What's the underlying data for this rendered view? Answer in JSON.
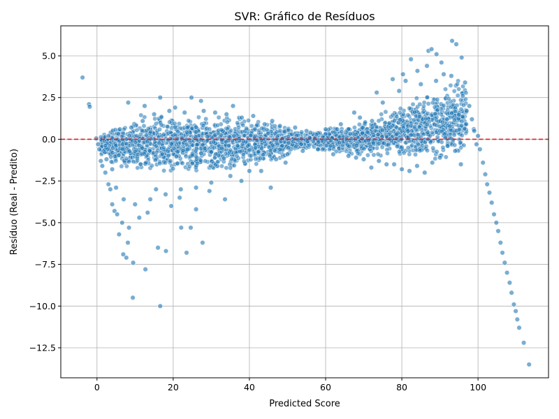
{
  "chart_data": {
    "type": "scatter",
    "title": "SVR: Gráfico de Resíduos",
    "xlabel": "Predicted Score",
    "ylabel": "Resíduo (Real - Predito)",
    "xlim": [
      -9.5,
      118.5
    ],
    "ylim": [
      -14.3,
      6.8
    ],
    "xticks": [
      0,
      20,
      40,
      60,
      80,
      100
    ],
    "yticks": [
      5.0,
      2.5,
      0.0,
      -2.5,
      -5.0,
      -7.5,
      -10.0,
      -12.5
    ],
    "xtick_labels": [
      "0",
      "20",
      "40",
      "60",
      "80",
      "100"
    ],
    "ytick_labels": [
      "5.0",
      "2.5",
      "0.0",
      "−2.5",
      "−5.0",
      "−7.5",
      "−10.0",
      "−12.5"
    ],
    "grid": true,
    "reference_line": {
      "y": 0,
      "style": "dashed",
      "color": "#e41a1c"
    },
    "point_color": "#1f77b4",
    "point_edge_color": "#ffffff",
    "series": [
      {
        "points": [
          [
            -3.8,
            3.7
          ],
          [
            -2.1,
            2.1
          ],
          [
            -1.9,
            1.95
          ],
          [
            -0.2,
            0.05
          ],
          [
            0.3,
            -0.3
          ],
          [
            0.6,
            -0.6
          ],
          [
            1.0,
            -1.3
          ],
          [
            1.4,
            -1.6
          ],
          [
            2.2,
            -2.0
          ],
          [
            3.0,
            -2.7
          ],
          [
            3.5,
            -3.0
          ],
          [
            4.0,
            -3.9
          ],
          [
            4.6,
            -4.3
          ],
          [
            5.3,
            -4.5
          ],
          [
            5.8,
            -5.7
          ],
          [
            6.6,
            -5.0
          ],
          [
            6.9,
            -6.9
          ],
          [
            7.7,
            -7.1
          ],
          [
            8.4,
            -5.3
          ],
          [
            8.1,
            -6.2
          ],
          [
            9.5,
            -7.4
          ],
          [
            9.4,
            -9.5
          ],
          [
            12.7,
            -7.8
          ],
          [
            16.6,
            -10.0
          ],
          [
            16.0,
            -6.5
          ],
          [
            18.1,
            -6.7
          ],
          [
            23.5,
            -6.8
          ],
          [
            27.7,
            -6.2
          ],
          [
            22.1,
            -5.3
          ],
          [
            24.6,
            -5.3
          ],
          [
            13.3,
            -4.4
          ],
          [
            11.1,
            -4.7
          ],
          [
            15.5,
            -3.0
          ],
          [
            19.5,
            -4.0
          ],
          [
            21.7,
            -3.5
          ],
          [
            26.0,
            -4.2
          ],
          [
            29.5,
            -3.1
          ],
          [
            33.6,
            -3.6
          ],
          [
            37.9,
            -2.5
          ],
          [
            45.6,
            -2.9
          ],
          [
            43.1,
            -1.9
          ],
          [
            49.5,
            -1.4
          ],
          [
            8.2,
            2.2
          ],
          [
            12.5,
            2.0
          ],
          [
            16.6,
            2.5
          ],
          [
            24.8,
            2.5
          ],
          [
            27.3,
            2.3
          ],
          [
            35.7,
            2.0
          ],
          [
            20.5,
            1.9
          ],
          [
            31.0,
            1.6
          ],
          [
            41.0,
            1.4
          ],
          [
            46.0,
            1.1
          ],
          [
            52.0,
            0.7
          ],
          [
            56.0,
            0.4
          ],
          [
            60.0,
            0.6
          ],
          [
            64.0,
            0.9
          ],
          [
            67.5,
            1.6
          ],
          [
            72.2,
            1.1
          ],
          [
            73.4,
            2.8
          ],
          [
            77.6,
            3.6
          ],
          [
            79.3,
            2.9
          ],
          [
            80.3,
            3.9
          ],
          [
            82.4,
            4.8
          ],
          [
            84.1,
            4.1
          ],
          [
            86.6,
            4.4
          ],
          [
            87.0,
            5.3
          ],
          [
            87.8,
            5.4
          ],
          [
            89.1,
            5.1
          ],
          [
            90.4,
            4.6
          ],
          [
            91.0,
            3.9
          ],
          [
            93.2,
            5.9
          ],
          [
            94.3,
            5.7
          ],
          [
            95.7,
            4.9
          ],
          [
            96.6,
            3.4
          ],
          [
            97.7,
            2.0
          ],
          [
            98.4,
            1.2
          ],
          [
            98.9,
            0.6
          ],
          [
            99.6,
            -0.3
          ],
          [
            100.5,
            -0.6
          ],
          [
            101.3,
            -1.4
          ],
          [
            101.9,
            -2.1
          ],
          [
            102.4,
            -2.7
          ],
          [
            103.0,
            -3.2
          ],
          [
            103.6,
            -3.8
          ],
          [
            104.2,
            -4.5
          ],
          [
            104.8,
            -5.0
          ],
          [
            105.3,
            -5.5
          ],
          [
            105.9,
            -6.2
          ],
          [
            106.4,
            -6.8
          ],
          [
            107.0,
            -7.4
          ],
          [
            107.6,
            -8.0
          ],
          [
            108.3,
            -8.6
          ],
          [
            108.8,
            -9.2
          ],
          [
            109.4,
            -9.9
          ],
          [
            109.9,
            -10.3
          ],
          [
            110.3,
            -10.8
          ],
          [
            110.8,
            -11.3
          ],
          [
            112.0,
            -12.2
          ],
          [
            113.4,
            -13.5
          ],
          [
            95.5,
            -1.5
          ],
          [
            94.0,
            -0.7
          ],
          [
            92.0,
            -0.4
          ],
          [
            90.0,
            -1.1
          ],
          [
            88.0,
            -1.4
          ],
          [
            86.0,
            -2.0
          ],
          [
            84.0,
            -1.6
          ],
          [
            82.0,
            -1.9
          ],
          [
            80.0,
            -1.8
          ],
          [
            78.0,
            -1.5
          ],
          [
            76.0,
            -1.5
          ],
          [
            74.0,
            -1.3
          ],
          [
            72.0,
            -1.7
          ],
          [
            70.0,
            -1.2
          ],
          [
            68.0,
            -1.1
          ],
          [
            66.0,
            -1.0
          ],
          [
            62.0,
            -0.9
          ],
          [
            58.0,
            -0.6
          ],
          [
            54.0,
            -0.7
          ],
          [
            50.0,
            -0.9
          ],
          [
            47.0,
            -1.2
          ],
          [
            40.0,
            -1.9
          ],
          [
            35.0,
            -2.2
          ],
          [
            30.0,
            -2.6
          ],
          [
            26.0,
            -2.9
          ],
          [
            22.0,
            -3.0
          ],
          [
            18.0,
            -3.3
          ],
          [
            14.0,
            -3.6
          ],
          [
            10.0,
            -3.9
          ],
          [
            7.0,
            -3.6
          ],
          [
            5.0,
            -2.9
          ],
          [
            4.0,
            -1.8
          ],
          [
            2.5,
            -1.2
          ],
          [
            3.0,
            0.2
          ],
          [
            6.0,
            0.6
          ],
          [
            9.0,
            0.7
          ],
          [
            12.0,
            1.1
          ],
          [
            15.0,
            1.5
          ],
          [
            19.0,
            1.7
          ],
          [
            23.0,
            1.6
          ],
          [
            28.0,
            1.7
          ],
          [
            34.0,
            1.5
          ],
          [
            38.0,
            1.3
          ],
          [
            44.0,
            0.9
          ],
          [
            48.0,
            0.8
          ],
          [
            55.0,
            0.5
          ],
          [
            63.0,
            0.6
          ],
          [
            69.0,
            1.3
          ],
          [
            75.0,
            2.2
          ],
          [
            81.0,
            3.5
          ],
          [
            85.0,
            3.3
          ],
          [
            89.0,
            3.5
          ],
          [
            93.0,
            3.8
          ],
          [
            96.0,
            2.6
          ],
          [
            97.0,
            1.7
          ],
          [
            99.0,
            0.5
          ],
          [
            100.0,
            0.2
          ]
        ]
      }
    ]
  }
}
